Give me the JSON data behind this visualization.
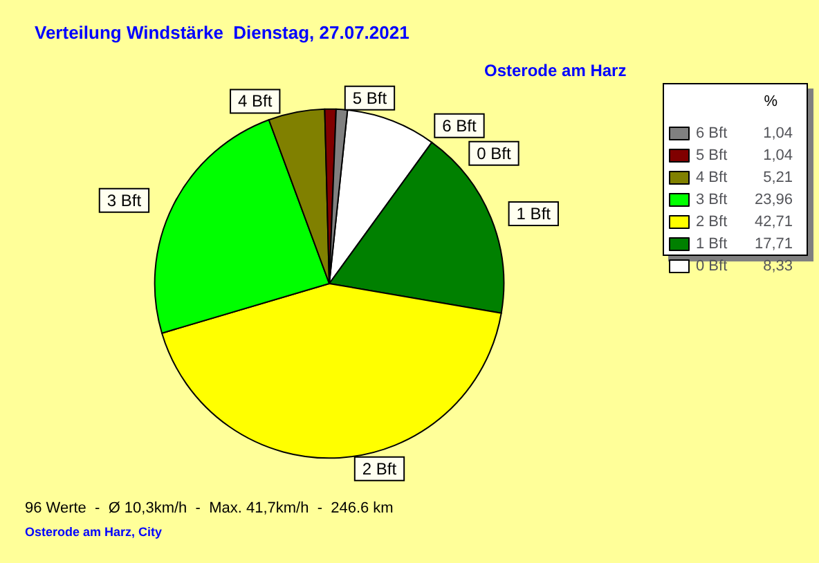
{
  "chart_data": {
    "type": "pie",
    "title": "Verteilung Windstärke  Dienstag, 27.07.2021",
    "subtitle": "Osterode am Harz",
    "legend_title": "%",
    "categories": [
      "0 Bft",
      "1 Bft",
      "2 Bft",
      "3 Bft",
      "4 Bft",
      "5 Bft",
      "6 Bft"
    ],
    "values": [
      8.33,
      17.71,
      42.71,
      23.96,
      5.21,
      1.04,
      1.04
    ],
    "value_labels": [
      "8,33",
      "17,71",
      "42,71",
      "23,96",
      "5,21",
      "1,04",
      "1,04"
    ],
    "colors": [
      "#ffffff",
      "#008000",
      "#ffff00",
      "#00ff00",
      "#808000",
      "#800000",
      "#808080"
    ],
    "legend": "right",
    "annotations": [
      "96 Werte  -  Ø 10,3km/h  -  Max. 41,7km/h  -  246.6 km",
      "Osterode am Harz, City"
    ]
  }
}
